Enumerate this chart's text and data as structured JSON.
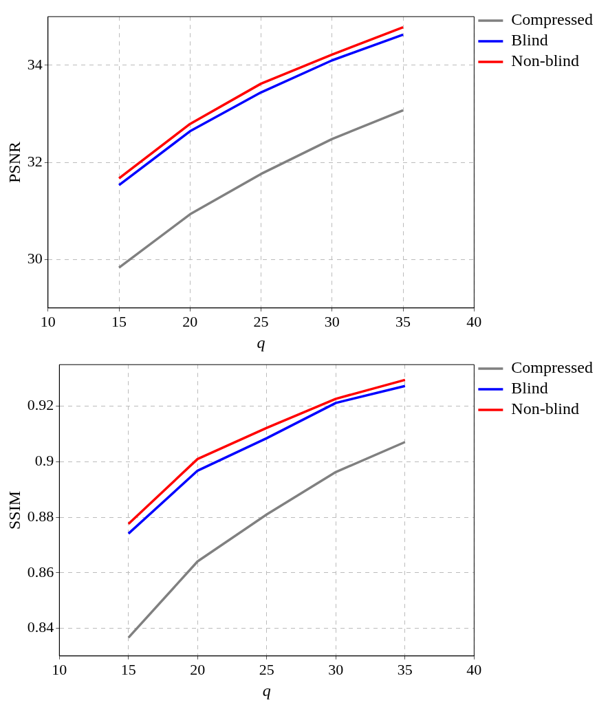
{
  "chart_data": [
    {
      "type": "line",
      "xlabel": "q",
      "ylabel": "PSNR",
      "x": [
        15,
        20,
        25,
        30,
        35
      ],
      "xlim": [
        10,
        40
      ],
      "xticks": [
        10,
        15,
        20,
        25,
        30,
        35,
        40
      ],
      "ylim": [
        29,
        35
      ],
      "yticks": [
        30,
        32,
        34
      ],
      "grid": true,
      "legend": "right",
      "marker": "none",
      "line_style": "solid",
      "series": [
        {
          "name": "Compressed",
          "color": "#808080",
          "values": [
            29.83,
            30.93,
            31.76,
            32.48,
            33.07
          ]
        },
        {
          "name": "Blind",
          "color": "#0000ff",
          "values": [
            31.53,
            32.64,
            33.44,
            34.1,
            34.63
          ]
        },
        {
          "name": "Non-blind",
          "color": "#ff0000",
          "values": [
            31.67,
            32.79,
            33.62,
            34.22,
            34.78
          ]
        }
      ]
    },
    {
      "type": "line",
      "xlabel": "q",
      "ylabel": "SSIM",
      "x": [
        15,
        20,
        25,
        30,
        35
      ],
      "xlim": [
        10,
        40
      ],
      "xticks": [
        10,
        15,
        20,
        25,
        30,
        35,
        40
      ],
      "ylim": [
        0.83,
        0.935
      ],
      "yticks": [
        0.84,
        0.86,
        0.88,
        0.9,
        0.92
      ],
      "grid": true,
      "legend": "right",
      "marker": "none",
      "line_style": "solid",
      "series": [
        {
          "name": "Compressed",
          "color": "#808080",
          "values": [
            0.8366,
            0.8641,
            0.881,
            0.8963,
            0.9071
          ]
        },
        {
          "name": "Blind",
          "color": "#0000ff",
          "values": [
            0.8741,
            0.8968,
            0.9085,
            0.9212,
            0.9273
          ]
        },
        {
          "name": "Non-blind",
          "color": "#ff0000",
          "values": [
            0.8776,
            0.901,
            0.9122,
            0.9227,
            0.9295
          ]
        }
      ]
    }
  ]
}
